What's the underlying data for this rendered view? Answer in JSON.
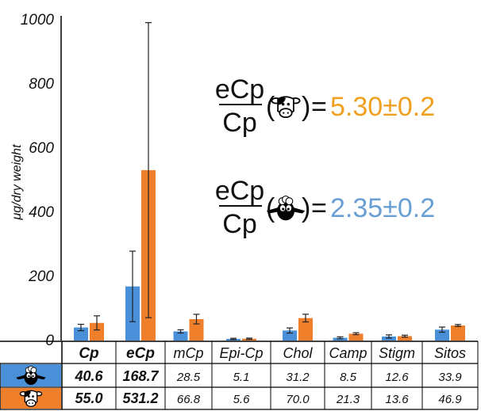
{
  "chart_data": {
    "type": "bar",
    "ylabel": "μg/dry weight",
    "ylim": [
      0,
      1000
    ],
    "yticks": [
      "0",
      "200",
      "400",
      "600",
      "800",
      "1000"
    ],
    "categories": [
      "Cp",
      "eCp",
      "mCp",
      "Epi-Cp",
      "Chol",
      "Camp",
      "Stigm",
      "Sitos"
    ],
    "bold_categories": [
      "Cp",
      "eCp"
    ],
    "series": [
      {
        "icon": "sheep-icon",
        "color": "#4a90d9",
        "values": [
          40.6,
          168.7,
          28.5,
          5.1,
          31.2,
          8.5,
          12.6,
          33.9
        ],
        "labels": [
          "40.6",
          "168.7",
          "28.5",
          "5.1",
          "31.2",
          "8.5",
          "12.6",
          "33.9"
        ],
        "error": [
          10,
          110,
          5,
          2,
          8,
          3,
          5,
          8
        ]
      },
      {
        "icon": "cow-icon",
        "color": "#f07f2c",
        "values": [
          55.0,
          531.2,
          66.8,
          5.6,
          70.0,
          21.3,
          13.6,
          46.9
        ],
        "labels": [
          "55.0",
          "531.2",
          "66.8",
          "5.6",
          "70.0",
          "21.3",
          "13.6",
          "46.9"
        ],
        "error": [
          22,
          460,
          15,
          2,
          12,
          3,
          3,
          3
        ]
      }
    ],
    "annotations": [
      {
        "numerator": "eCp",
        "denominator": "Cp",
        "icon": "cow-icon",
        "equals": "=",
        "value": "5.30±0.2",
        "color": "#f0a020"
      },
      {
        "numerator": "eCp",
        "denominator": "Cp",
        "icon": "sheep-icon",
        "equals": "=",
        "value": "2.35±0.2",
        "color": "#6a9fd4"
      }
    ]
  }
}
